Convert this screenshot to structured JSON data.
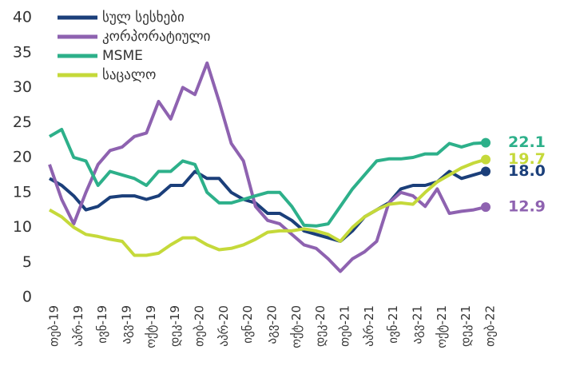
{
  "chart_data": {
    "type": "line",
    "categories": [
      "თებ-19",
      null,
      "აპრ-19",
      null,
      "ივნ-19",
      null,
      "აგვ-19",
      null,
      "ოქტ-19",
      null,
      "დეკ-19",
      null,
      "თებ-20",
      null,
      "აპრ-20",
      null,
      "ივნ-20",
      null,
      "აგვ-20",
      null,
      "ოქტ-20",
      null,
      "დეკ-20",
      null,
      "თებ-21",
      null,
      "აპრ-21",
      null,
      "ივნ-21",
      null,
      "აგვ-21",
      null,
      "ოქტ-21",
      null,
      "დეკ-21",
      null,
      "თებ-22"
    ],
    "series": [
      {
        "name": "სულ სესხები",
        "color": "#1b3f7a",
        "values": [
          17,
          16,
          14.5,
          12.5,
          13,
          14.3,
          14.5,
          14.5,
          14,
          14.5,
          16,
          16,
          18,
          17,
          17,
          15,
          14,
          13.5,
          12,
          12,
          11,
          9.5,
          9,
          8.5,
          8,
          9.5,
          11.5,
          12.5,
          13.5,
          15.5,
          16,
          16,
          16.5,
          18,
          17,
          17.5,
          18
        ],
        "value_labels": [
          null,
          null,
          null,
          null,
          null,
          null,
          null,
          null,
          null,
          null,
          null,
          null,
          null,
          null,
          null,
          null,
          null,
          null,
          null,
          null,
          null,
          null,
          null,
          null,
          null,
          null,
          null,
          null,
          null,
          null,
          null,
          null,
          null,
          null,
          null,
          null,
          "18.0"
        ]
      },
      {
        "name": "კორპორატიული",
        "color": "#8e62b0",
        "values": [
          19,
          14,
          10.5,
          15,
          19,
          21,
          21.5,
          23,
          23.5,
          28,
          25.5,
          30,
          29,
          33.5,
          28,
          22,
          19.5,
          13,
          11,
          10.5,
          9,
          7.5,
          7,
          5.5,
          3.7,
          5.5,
          6.5,
          8,
          13.5,
          15,
          14.5,
          13,
          15.5,
          12,
          12.3,
          12.5,
          12.9
        ],
        "value_labels": [
          null,
          null,
          null,
          null,
          null,
          null,
          null,
          null,
          null,
          null,
          null,
          null,
          null,
          null,
          null,
          null,
          null,
          null,
          null,
          null,
          null,
          null,
          null,
          null,
          null,
          null,
          null,
          null,
          null,
          null,
          null,
          null,
          null,
          null,
          null,
          null,
          "12.9"
        ]
      },
      {
        "name": "MSME",
        "color": "#2db08a",
        "values": [
          23,
          24,
          20,
          19.5,
          16,
          18,
          17.5,
          17,
          16,
          18,
          18,
          19.5,
          19,
          15,
          13.5,
          13.5,
          14,
          14.5,
          15,
          15,
          13,
          10.3,
          10.2,
          10.5,
          13,
          15.5,
          17.5,
          19.5,
          19.8,
          19.8,
          20,
          20.5,
          20.5,
          22,
          21.5,
          22,
          22.1
        ],
        "value_labels": [
          null,
          null,
          null,
          null,
          null,
          null,
          null,
          null,
          null,
          null,
          null,
          null,
          null,
          null,
          null,
          null,
          null,
          null,
          null,
          null,
          null,
          null,
          null,
          null,
          null,
          null,
          null,
          null,
          null,
          null,
          null,
          null,
          null,
          null,
          null,
          null,
          "22.1"
        ]
      },
      {
        "name": "საცალო",
        "color": "#c5d93a",
        "values": [
          12.5,
          11.5,
          10,
          9,
          8.7,
          8.3,
          8,
          6,
          6,
          6.3,
          7.5,
          8.5,
          8.5,
          7.5,
          6.8,
          7,
          7.5,
          8.3,
          9.3,
          9.5,
          9.5,
          9.8,
          9.5,
          9,
          8,
          10,
          11.5,
          12.5,
          13.3,
          13.5,
          13.3,
          15,
          16.5,
          17.5,
          18.5,
          19.2,
          19.7
        ],
        "value_labels": [
          null,
          null,
          null,
          null,
          null,
          null,
          null,
          null,
          null,
          null,
          null,
          null,
          null,
          null,
          null,
          null,
          null,
          null,
          null,
          null,
          null,
          null,
          null,
          null,
          null,
          null,
          null,
          null,
          null,
          null,
          null,
          null,
          null,
          null,
          null,
          null,
          "19.7"
        ]
      }
    ],
    "ylim": [
      0,
      40
    ],
    "yticks": [
      0,
      5,
      10,
      15,
      20,
      25,
      30,
      35,
      40
    ],
    "legend": "top-left"
  }
}
